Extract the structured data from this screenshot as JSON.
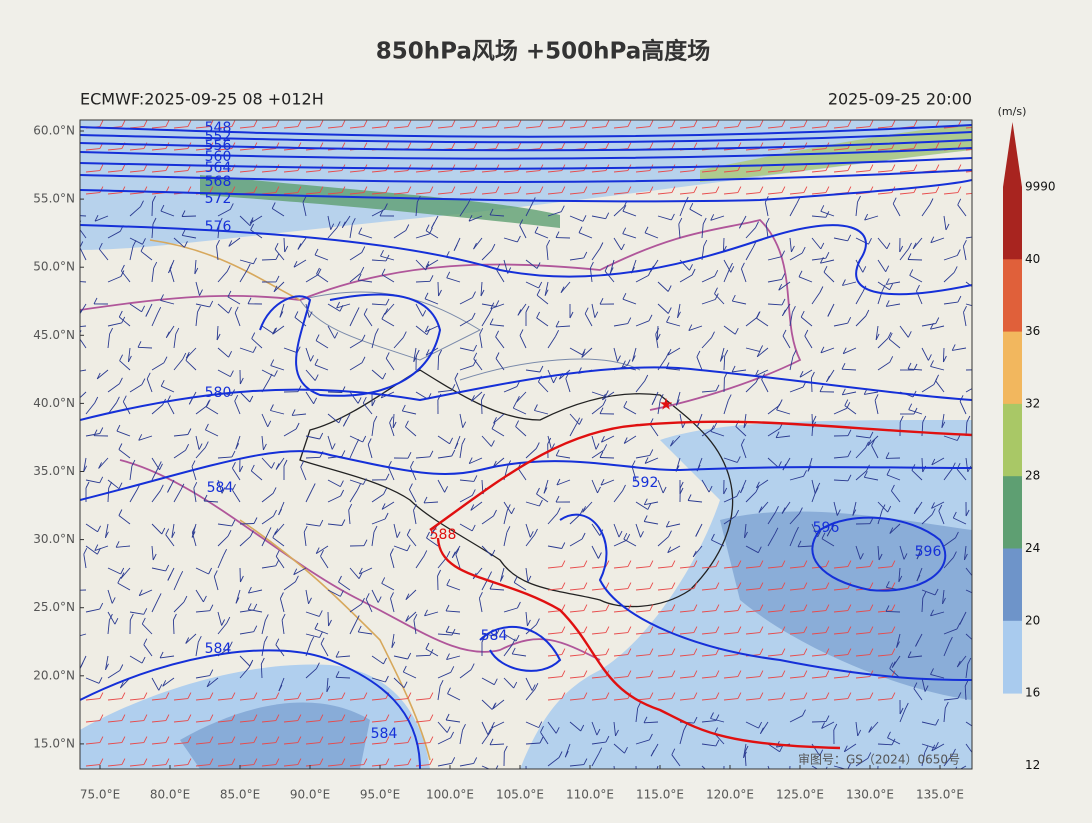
{
  "header": {
    "title": "850hPa风场 +500hPa高度场",
    "model_run": "ECMWF:2025-09-25 08 +012H",
    "valid_time": "2025-09-25 20:00"
  },
  "axes": {
    "lat_labels": [
      "60.0°N",
      "55.0°N",
      "50.0°N",
      "45.0°N",
      "40.0°N",
      "35.0°N",
      "30.0°N",
      "25.0°N",
      "20.0°N",
      "15.0°N"
    ],
    "lon_labels": [
      "75.0°E",
      "80.0°E",
      "85.0°E",
      "90.0°E",
      "95.0°E",
      "100.0°E",
      "105.0°E",
      "110.0°E",
      "115.0°E",
      "120.0°E",
      "125.0°E",
      "130.0°E",
      "135.0°E"
    ]
  },
  "colorbar": {
    "unit": "(m/s)",
    "labels": [
      "9990",
      "40",
      "36",
      "32",
      "28",
      "24",
      "20",
      "16",
      "12"
    ],
    "colors": [
      "#a8241f",
      "#e0603a",
      "#f2b75e",
      "#a9c866",
      "#5e9f72",
      "#6e94c9",
      "#a9cbee"
    ]
  },
  "contours": {
    "labels": [
      "548",
      "552",
      "556",
      "560",
      "564",
      "568",
      "572",
      "576",
      "580",
      "584",
      "584",
      "584",
      "584",
      "588",
      "592",
      "596",
      "596"
    ]
  },
  "watermark": "审图号：GS（2024）0650号"
}
